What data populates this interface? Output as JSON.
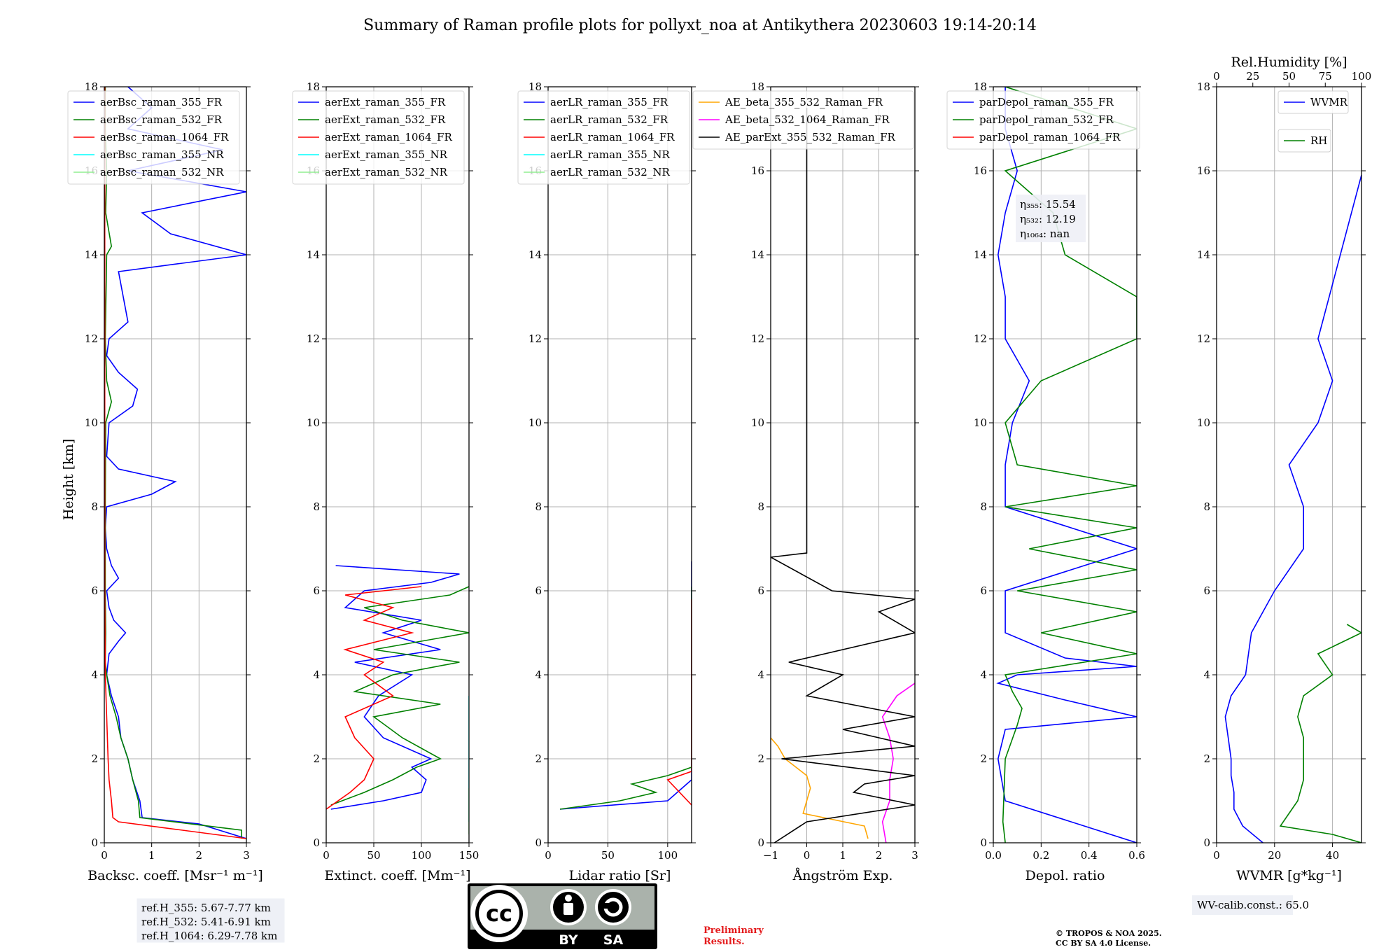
{
  "figure": {
    "title": "Summary of Raman profile plots for pollyxt_noa at Antikythera 20230603 19:14-20:14",
    "height_axis_label": "Height [km]"
  },
  "colors": {
    "blue": "#0000ff",
    "green": "#008000",
    "red": "#ff0000",
    "cyan": "#00ffff",
    "lightgreen": "#90ee90",
    "orange": "#ffa500",
    "magenta": "#ff00ff",
    "black": "#000000",
    "grid": "#b0b0b0"
  },
  "chart_data": [
    {
      "type": "line",
      "panel": "backscatter",
      "xlabel": "Backsc. coeff. [Msr⁻¹ m⁻¹]",
      "ylabel": "Height [km]",
      "xlim": [
        0,
        3
      ],
      "ylim": [
        0,
        18
      ],
      "xticks": [
        0,
        1,
        2,
        3
      ],
      "yticks": [
        0,
        2,
        4,
        6,
        8,
        10,
        12,
        14,
        16,
        18
      ],
      "grid": true,
      "legend": "top-left",
      "series": [
        {
          "name": "aerBsc_raman_355_FR",
          "color": "#0000ff",
          "y": [
            0.1,
            0.45,
            0.55,
            0.6,
            1.0,
            1.5,
            2.0,
            2.5,
            3.0,
            3.5,
            4.0,
            4.5,
            4.8,
            5.0,
            5.3,
            5.6,
            6.0,
            6.3,
            6.6,
            7.0,
            7.5,
            8.0,
            8.3,
            8.6,
            8.9,
            9.2,
            10.0,
            10.4,
            10.8,
            11.2,
            11.6,
            12.0,
            12.4,
            13.6,
            14.0,
            14.5,
            15.0,
            15.5,
            16.0,
            16.5,
            17.0,
            17.5,
            18.0
          ],
          "x": [
            3.0,
            2.0,
            1.2,
            0.8,
            0.75,
            0.6,
            0.5,
            0.35,
            0.3,
            0.15,
            0.05,
            0.1,
            0.3,
            0.45,
            0.2,
            0.1,
            0.05,
            0.3,
            0.15,
            0.05,
            0.02,
            0.05,
            1.0,
            1.5,
            0.3,
            0.05,
            0.1,
            0.6,
            0.7,
            0.3,
            0.05,
            0.1,
            0.5,
            0.3,
            3.0,
            1.4,
            0.8,
            3.0,
            0.5,
            2.5,
            0.5,
            1.0,
            0.5
          ]
        },
        {
          "name": "aerBsc_raman_532_FR",
          "color": "#008000",
          "y": [
            0.1,
            0.3,
            0.6,
            1.0,
            1.5,
            2.0,
            2.5,
            3.0,
            3.5,
            4.0,
            4.3,
            5.0,
            6.0,
            8.0,
            10.0,
            10.5,
            11.0,
            12.0,
            14.0,
            14.2,
            15.0,
            16.0,
            17.0,
            18.0
          ],
          "x": [
            2.9,
            2.9,
            0.75,
            0.72,
            0.6,
            0.5,
            0.35,
            0.25,
            0.12,
            0.05,
            0.02,
            0.03,
            0.02,
            0.02,
            0.03,
            0.15,
            0.05,
            0.02,
            0.05,
            0.15,
            0.03,
            0.05,
            0.02,
            0.02
          ]
        },
        {
          "name": "aerBsc_raman_1064_FR",
          "color": "#ff0000",
          "y": [
            0.1,
            0.5,
            0.6,
            1.0,
            1.5,
            2.0,
            3.0,
            4.0,
            6.0,
            10.0,
            14.0,
            18.0
          ],
          "x": [
            3.0,
            0.3,
            0.18,
            0.15,
            0.1,
            0.08,
            0.05,
            0.02,
            0.01,
            0.01,
            0.01,
            0.01
          ]
        },
        {
          "name": "aerBsc_raman_355_NR",
          "color": "#00ffff",
          "y": [],
          "x": []
        },
        {
          "name": "aerBsc_raman_532_NR",
          "color": "#90ee90",
          "y": [],
          "x": []
        }
      ],
      "annotations": [
        "ref.H_355: 5.67-7.77 km",
        "ref.H_532: 5.41-6.91 km",
        "ref.H_1064: 6.29-7.78 km"
      ]
    },
    {
      "type": "line",
      "panel": "extinction",
      "xlabel": "Extinct. coeff. [Mm⁻¹]",
      "xlim": [
        0,
        150
      ],
      "ylim": [
        0,
        18
      ],
      "xticks": [
        0,
        50,
        100,
        150
      ],
      "grid": true,
      "legend": "top-left",
      "series": [
        {
          "name": "aerExt_raman_355_FR",
          "color": "#0000ff",
          "y": [
            0.8,
            1.0,
            1.2,
            1.5,
            1.8,
            2.0,
            2.5,
            3.0,
            3.5,
            4.0,
            4.3,
            4.6,
            5.0,
            5.3,
            5.6,
            6.0,
            6.2,
            6.4,
            6.6
          ],
          "x": [
            5,
            60,
            100,
            105,
            90,
            110,
            60,
            40,
            55,
            90,
            30,
            120,
            60,
            100,
            20,
            40,
            110,
            140,
            10
          ]
        },
        {
          "name": "aerExt_raman_532_FR",
          "color": "#008000",
          "y": [
            0.9,
            1.2,
            1.5,
            1.8,
            2.0,
            2.5,
            3.0,
            3.3,
            3.6,
            4.0,
            4.3,
            4.6,
            5.0,
            5.3,
            5.6,
            5.9,
            6.1
          ],
          "x": [
            5,
            40,
            70,
            95,
            120,
            80,
            50,
            120,
            30,
            70,
            140,
            50,
            150,
            80,
            40,
            130,
            150
          ]
        },
        {
          "name": "aerExt_raman_1064_FR",
          "color": "#ff0000",
          "y": [
            0.8,
            1.2,
            1.5,
            2.0,
            2.5,
            3.0,
            3.5,
            4.0,
            4.3,
            4.6,
            5.0,
            5.3,
            5.6,
            5.9,
            6.1
          ],
          "x": [
            0,
            25,
            40,
            50,
            30,
            20,
            70,
            40,
            60,
            20,
            90,
            40,
            70,
            20,
            100
          ]
        },
        {
          "name": "aerExt_raman_355_NR",
          "color": "#00ffff",
          "y": [
            0.5,
            1.0,
            1.5,
            2.0,
            2.5,
            3.0,
            3.5
          ],
          "x": [
            150,
            150,
            150,
            150,
            150,
            150,
            150
          ]
        },
        {
          "name": "aerExt_raman_532_NR",
          "color": "#90ee90",
          "y": [
            0.2,
            0.5,
            0.8,
            1.0,
            1.3
          ],
          "x": [
            150,
            150,
            150,
            150,
            150
          ]
        }
      ]
    },
    {
      "type": "line",
      "panel": "lidar_ratio",
      "xlabel": "Lidar ratio [Sr]",
      "xlim": [
        0,
        120
      ],
      "ylim": [
        0,
        18
      ],
      "xticks": [
        0,
        50,
        100
      ],
      "grid": true,
      "legend": "top-left",
      "series": [
        {
          "name": "aerLR_raman_355_FR",
          "color": "#0000ff",
          "y": [
            0.8,
            1.0,
            1.5,
            3.0,
            3.5,
            4.0,
            5.0,
            5.5,
            6.5,
            6.7
          ],
          "x": [
            10,
            100,
            120,
            120,
            120,
            120,
            120,
            120,
            120,
            120
          ]
        },
        {
          "name": "aerLR_raman_532_FR",
          "color": "#008000",
          "y": [
            0.8,
            1.0,
            1.2,
            1.4,
            1.6,
            1.8,
            2.2,
            2.8,
            6.1
          ],
          "x": [
            10,
            60,
            90,
            70,
            100,
            120,
            120,
            120,
            120
          ]
        },
        {
          "name": "aerLR_raman_1064_FR",
          "color": "#ff0000",
          "y": [
            0.9,
            1.5,
            1.7,
            2.5,
            3.0,
            4.0,
            4.5,
            5.0,
            5.8
          ],
          "x": [
            120,
            100,
            120,
            120,
            120,
            120,
            120,
            120,
            120
          ]
        },
        {
          "name": "aerLR_raman_355_NR",
          "color": "#00ffff",
          "y": [],
          "x": []
        },
        {
          "name": "aerLR_raman_532_NR",
          "color": "#90ee90",
          "y": [],
          "x": []
        }
      ]
    },
    {
      "type": "line",
      "panel": "angstrom",
      "xlabel": "Ångström Exp.",
      "xlim": [
        -1,
        3
      ],
      "ylim": [
        0,
        18
      ],
      "xticks": [
        -1,
        0,
        1,
        2,
        3
      ],
      "grid": true,
      "legend": "top-center",
      "series": [
        {
          "name": "AE_beta_355_532_Raman_FR",
          "color": "#ffa500",
          "y": [
            0.1,
            0.4,
            0.7,
            1.0,
            1.3,
            1.6,
            2.0,
            2.3,
            2.5
          ],
          "x": [
            1.7,
            1.6,
            -0.1,
            0.0,
            0.1,
            0.0,
            -0.6,
            -0.8,
            -1.0
          ]
        },
        {
          "name": "AE_beta_532_1064_Raman_FR",
          "color": "#ff00ff",
          "y": [
            0.0,
            0.5,
            1.0,
            1.5,
            2.0,
            2.5,
            3.0,
            3.5,
            3.8
          ],
          "x": [
            2.2,
            2.1,
            2.3,
            2.3,
            2.4,
            2.3,
            2.1,
            2.5,
            3.0
          ]
        },
        {
          "name": "AE_parExt_355_532_Raman_FR",
          "color": "#000000",
          "y": [
            0.0,
            0.5,
            0.9,
            1.2,
            1.4,
            1.6,
            2.0,
            2.3,
            2.7,
            3.0,
            3.5,
            4.0,
            4.3,
            5.0,
            5.5,
            5.8,
            6.0,
            6.8,
            6.9,
            17.5
          ],
          "x": [
            -0.9,
            0.0,
            3.0,
            1.3,
            1.6,
            3.0,
            -0.7,
            3.0,
            1.0,
            3.0,
            0.0,
            1.0,
            -0.5,
            3.0,
            2.0,
            3.0,
            0.7,
            -1.0,
            0.0,
            0.0
          ]
        }
      ]
    },
    {
      "type": "line",
      "panel": "depolarization",
      "xlabel": "Depol. ratio",
      "xlim": [
        0,
        0.6
      ],
      "ylim": [
        0,
        18
      ],
      "xticks": [
        0.0,
        0.2,
        0.4,
        0.6
      ],
      "grid": true,
      "legend": "top-left",
      "series": [
        {
          "name": "parDepol_raman_355_FR",
          "color": "#0000ff",
          "y": [
            0.0,
            1.0,
            2.0,
            2.7,
            3.0,
            3.4,
            3.8,
            4.0,
            4.2,
            4.4,
            5.0,
            6.0,
            7.0,
            8.0,
            9.0,
            10.0,
            11.0,
            12.0,
            13.0,
            14.0,
            15.0,
            16.0,
            17.0,
            18.0
          ],
          "x": [
            0.6,
            0.05,
            0.02,
            0.05,
            0.6,
            0.3,
            0.02,
            0.1,
            0.6,
            0.3,
            0.05,
            0.05,
            0.6,
            0.05,
            0.05,
            0.08,
            0.15,
            0.05,
            0.05,
            0.02,
            0.05,
            0.1,
            0.05,
            0.05
          ]
        },
        {
          "name": "parDepol_raman_532_FR",
          "color": "#008000",
          "y": [
            0.0,
            0.5,
            2.0,
            2.8,
            3.2,
            3.6,
            4.0,
            4.5,
            5.0,
            5.5,
            6.0,
            6.5,
            7.0,
            7.5,
            8.0,
            8.5,
            9.0,
            10.0,
            11.0,
            12.0,
            13.0,
            14.0,
            15.0,
            16.0,
            17.0,
            18.0
          ],
          "x": [
            0.05,
            0.04,
            0.05,
            0.1,
            0.12,
            0.08,
            0.05,
            0.6,
            0.2,
            0.6,
            0.1,
            0.6,
            0.15,
            0.6,
            0.05,
            0.6,
            0.1,
            0.05,
            0.2,
            0.6,
            0.6,
            0.3,
            0.25,
            0.05,
            0.6,
            0.05
          ]
        },
        {
          "name": "parDepol_raman_1064_FR",
          "color": "#ff0000",
          "y": [],
          "x": []
        }
      ],
      "annotations": [
        "η₃₅₅: 15.54",
        "η₅₃₂: 12.19",
        "η₁₀₆₄: nan"
      ]
    },
    {
      "type": "line",
      "panel": "water_vapor",
      "xlabel": "WVMR [g*kg⁻¹]",
      "top_xlabel": "Rel.Humidity [%]",
      "xlim": [
        0,
        50
      ],
      "top_xlim": [
        0,
        100
      ],
      "ylim": [
        0,
        18
      ],
      "xticks": [
        0,
        20,
        40
      ],
      "top_xticks": [
        0,
        25,
        50,
        75,
        100
      ],
      "grid": true,
      "legend": "top-right",
      "series": [
        {
          "name": "WVMR",
          "color": "#0000ff",
          "y": [
            0.0,
            0.4,
            0.8,
            1.2,
            1.6,
            2.0,
            2.5,
            3.0,
            3.5,
            4.0,
            5.0,
            6.0,
            7.0,
            8.0,
            9.0,
            10.0,
            11.0,
            12.0,
            15.9
          ],
          "x": [
            16,
            9,
            6,
            6,
            5,
            5,
            4,
            3,
            5,
            10,
            12,
            20,
            30,
            30,
            25,
            35,
            40,
            35,
            50
          ]
        },
        {
          "name": "RH",
          "color": "#008000",
          "y": [
            0.0,
            0.2,
            0.4,
            0.7,
            1.0,
            1.5,
            2.0,
            2.5,
            3.0,
            3.5,
            4.0,
            4.5,
            5.0,
            5.2
          ],
          "x": [
            50,
            40,
            22,
            25,
            28,
            30,
            30,
            30,
            28,
            30,
            40,
            35,
            50,
            45
          ]
        }
      ],
      "annotations": [
        "WV-calib.const.: 65.0"
      ]
    }
  ],
  "footer": {
    "license_badge": {
      "cc": "cc",
      "by": "BY",
      "sa": "SA"
    },
    "preliminary": [
      "Preliminary",
      "Results."
    ],
    "copyright": [
      "© TROPOS & NOA 2025.",
      "CC BY SA 4.0 License."
    ]
  }
}
